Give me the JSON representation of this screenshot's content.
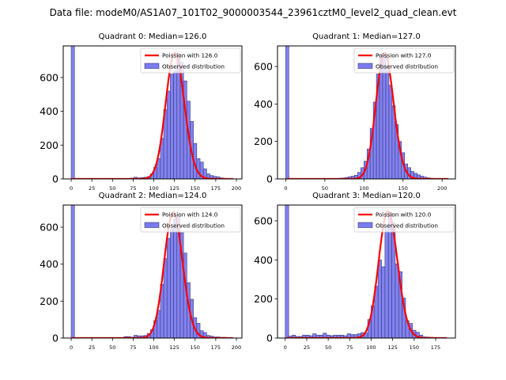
{
  "figure": {
    "title": "Data file: modeM0/AS1A07_101T02_9000003544_23961cztM0_level2_quad_clean.evt"
  },
  "colors": {
    "bar_fill": "#7b7bf0",
    "bar_edge": "#3a3a7a",
    "poisson_line": "#ff0000",
    "axes": "#000000"
  },
  "chart_data": [
    {
      "type": "bar",
      "title": "Quadrant 0: Median=126.0",
      "xlabel": "",
      "ylabel": "",
      "xlim": [
        -9.6,
        206.7
      ],
      "ylim": [
        0,
        787
      ],
      "xticks": [
        0,
        25,
        50,
        75,
        100,
        125,
        150,
        175,
        200
      ],
      "yticks": [
        0,
        200,
        400,
        600
      ],
      "bin_width": 4,
      "bins": [
        0,
        4,
        8,
        12,
        16,
        20,
        24,
        28,
        32,
        36,
        40,
        44,
        48,
        52,
        56,
        60,
        64,
        68,
        72,
        76,
        80,
        84,
        88,
        92,
        96,
        100,
        104,
        108,
        112,
        116,
        120,
        124,
        128,
        132,
        136,
        140,
        144,
        148,
        152,
        156,
        160,
        164,
        168,
        172,
        176,
        180,
        184,
        188,
        192
      ],
      "values": [
        790,
        0,
        0,
        0,
        0,
        0,
        0,
        0,
        0,
        0,
        0,
        0,
        0,
        0,
        0,
        2,
        3,
        3,
        5,
        10,
        6,
        8,
        10,
        14,
        30,
        70,
        120,
        240,
        410,
        520,
        620,
        640,
        740,
        690,
        580,
        460,
        340,
        210,
        120,
        100,
        60,
        30,
        20,
        15,
        12,
        6,
        4,
        3,
        2
      ],
      "poisson": {
        "label": "Poisson with 126.0",
        "mean": 126.0,
        "peak": 745
      },
      "legend": {
        "entries": [
          "Poission with 126.0",
          "Observed distribution"
        ],
        "placement": "upper right"
      }
    },
    {
      "type": "bar",
      "title": "Quadrant 1: Median=127.0",
      "xlabel": "",
      "ylabel": "",
      "xlim": [
        -10.5,
        217
      ],
      "ylim": [
        0,
        710
      ],
      "xticks": [
        0,
        50,
        100,
        150,
        200
      ],
      "yticks": [
        0,
        200,
        400,
        600
      ],
      "bin_width": 4,
      "bins": [
        0,
        4,
        8,
        12,
        16,
        20,
        24,
        28,
        32,
        36,
        40,
        44,
        48,
        52,
        56,
        60,
        64,
        68,
        72,
        76,
        80,
        84,
        88,
        92,
        96,
        100,
        104,
        108,
        112,
        116,
        120,
        124,
        128,
        132,
        136,
        140,
        144,
        148,
        152,
        156,
        160,
        164,
        168,
        172,
        176,
        180,
        184,
        188,
        192,
        196,
        200,
        204
      ],
      "values": [
        720,
        0,
        0,
        0,
        0,
        0,
        0,
        0,
        0,
        0,
        0,
        0,
        0,
        0,
        0,
        2,
        3,
        4,
        5,
        8,
        12,
        15,
        20,
        35,
        60,
        95,
        160,
        270,
        410,
        560,
        660,
        670,
        600,
        500,
        390,
        290,
        200,
        140,
        80,
        60,
        40,
        30,
        22,
        15,
        10,
        6,
        4,
        3,
        2,
        2,
        1,
        1
      ],
      "poisson": {
        "label": "Poisson with 127.0",
        "mean": 127.0,
        "peak": 672
      },
      "legend": {
        "entries": [
          "Poission with 127.0",
          "Observed distribution"
        ],
        "placement": "upper right"
      }
    },
    {
      "type": "bar",
      "title": "Quadrant 2: Median=124.0",
      "xlabel": "",
      "ylabel": "",
      "xlim": [
        -9.6,
        206.7
      ],
      "ylim": [
        0,
        720
      ],
      "xticks": [
        0,
        25,
        50,
        75,
        100,
        125,
        150,
        175,
        200
      ],
      "yticks": [
        0,
        200,
        400,
        600
      ],
      "bin_width": 4,
      "bins": [
        0,
        4,
        8,
        12,
        16,
        20,
        24,
        28,
        32,
        36,
        40,
        44,
        48,
        52,
        56,
        60,
        64,
        68,
        72,
        76,
        80,
        84,
        88,
        92,
        96,
        100,
        104,
        108,
        112,
        116,
        120,
        124,
        128,
        132,
        136,
        140,
        144,
        148,
        152,
        156,
        160,
        164,
        168,
        172,
        176,
        180,
        184,
        188,
        192
      ],
      "values": [
        730,
        0,
        0,
        0,
        0,
        0,
        0,
        0,
        0,
        0,
        0,
        0,
        0,
        0,
        0,
        2,
        8,
        8,
        5,
        15,
        12,
        12,
        14,
        25,
        45,
        95,
        150,
        290,
        430,
        540,
        590,
        640,
        660,
        570,
        460,
        300,
        210,
        110,
        80,
        40,
        30,
        14,
        10,
        6,
        6,
        4,
        4,
        2,
        2
      ],
      "poisson": {
        "label": "Poisson with 124.0",
        "mean": 124.0,
        "peak": 680
      },
      "legend": {
        "entries": [
          "Poission with 124.0",
          "Observed distribution"
        ],
        "placement": "upper right"
      }
    },
    {
      "type": "bar",
      "title": "Quadrant 3: Median=120.0",
      "xlabel": "",
      "ylabel": "",
      "xlim": [
        -9,
        198
      ],
      "ylim": [
        0,
        681
      ],
      "xticks": [
        0,
        25,
        50,
        75,
        100,
        125,
        150,
        175
      ],
      "yticks": [
        0,
        200,
        400,
        600
      ],
      "bin_width": 4,
      "bins": [
        0,
        4,
        8,
        12,
        16,
        20,
        24,
        28,
        32,
        36,
        40,
        44,
        48,
        52,
        56,
        60,
        64,
        68,
        72,
        76,
        80,
        84,
        88,
        92,
        96,
        100,
        104,
        108,
        112,
        116,
        120,
        124,
        128,
        132,
        136,
        140,
        144,
        148,
        152,
        156,
        160,
        164,
        168,
        172,
        176,
        180,
        184
      ],
      "values": [
        690,
        10,
        15,
        8,
        8,
        15,
        15,
        12,
        22,
        15,
        15,
        25,
        15,
        12,
        15,
        15,
        15,
        12,
        22,
        18,
        18,
        22,
        28,
        25,
        95,
        165,
        265,
        400,
        365,
        560,
        640,
        590,
        380,
        340,
        205,
        90,
        75,
        40,
        30,
        15,
        6,
        5,
        4,
        3,
        2,
        2,
        1
      ],
      "poisson": {
        "label": "Poisson with 120.0",
        "mean": 120.0,
        "peak": 648
      },
      "legend": {
        "entries": [
          "Poission with 120.0",
          "Observed distribution"
        ],
        "placement": "upper right"
      }
    }
  ]
}
